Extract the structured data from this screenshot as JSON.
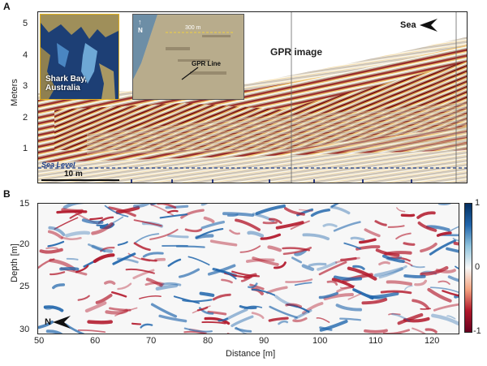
{
  "panelA": {
    "letter": "A",
    "ylabel": "Meters",
    "yticks": [
      "5",
      "4",
      "3",
      "2",
      "1"
    ],
    "title": "GPR image",
    "sea_label": "Sea",
    "sea_level_label": "Sea Level",
    "scale_label": "10 m",
    "inset1_label_line1": "Shark Bay,",
    "inset1_label_line2": "Australia",
    "inset2_north": "N",
    "inset2_scale": "300 m",
    "inset2_label": "GPR Line"
  },
  "panelB": {
    "letter": "B",
    "ylabel": "Depth [m]",
    "xlabel": "Distance [m]",
    "yticks": [
      "15",
      "20",
      "25",
      "30"
    ],
    "xticks": [
      "50",
      "60",
      "70",
      "80",
      "90",
      "100",
      "110",
      "120"
    ],
    "colorbar_ticks": [
      "1",
      "0",
      "-1"
    ],
    "north_label": "N"
  },
  "chart_data": {
    "type": "heatmap",
    "xlabel": "Distance [m]",
    "ylabel": "Depth [m]",
    "xlim": [
      50,
      125
    ],
    "ylim": [
      30,
      15
    ],
    "colorbar_range": [
      -1,
      1
    ]
  },
  "colors": {
    "red": "#b2182b",
    "blue": "#2166ac",
    "white": "#f7f7f7"
  }
}
